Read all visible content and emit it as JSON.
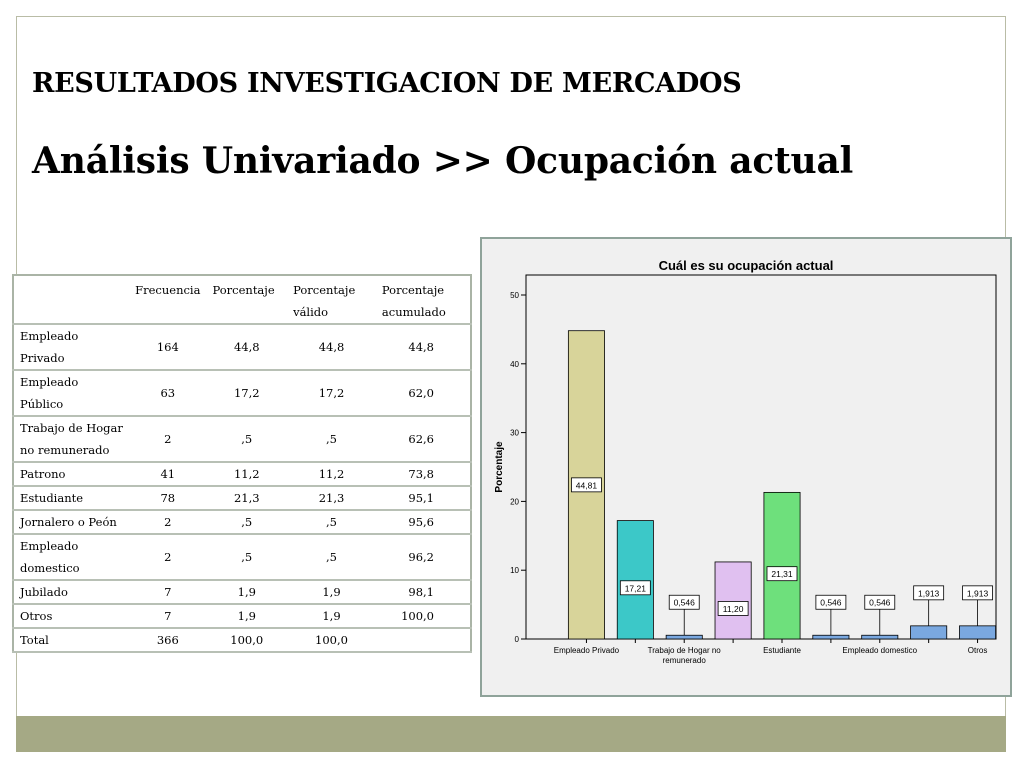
{
  "slide": {
    "heading": "RESULTADOS INVESTIGACION DE MERCADOS",
    "subheading": "Análisis Univariado >> Ocupación actual"
  },
  "table": {
    "headers": [
      "",
      "Frecuencia",
      "Porcentaje",
      "Porcentaje válido",
      "Porcentaje acumulado"
    ],
    "rows": [
      [
        "Empleado Privado",
        "164",
        "44,8",
        "44,8",
        "44,8"
      ],
      [
        "Empleado Público",
        "63",
        "17,2",
        "17,2",
        "62,0"
      ],
      [
        "Trabajo de Hogar no remunerado",
        "2",
        ",5",
        ",5",
        "62,6"
      ],
      [
        "Patrono",
        "41",
        "11,2",
        "11,2",
        "73,8"
      ],
      [
        "Estudiante",
        "78",
        "21,3",
        "21,3",
        "95,1"
      ],
      [
        "Jornalero o Peón",
        "2",
        ",5",
        ",5",
        "95,6"
      ],
      [
        "Empleado domestico",
        "2",
        ",5",
        ",5",
        "96,2"
      ],
      [
        "Jubilado",
        "7",
        "1,9",
        "1,9",
        "98,1"
      ],
      [
        "Otros",
        "7",
        "1,9",
        "1,9",
        "100,0"
      ],
      [
        "Total",
        "366",
        "100,0",
        "100,0",
        ""
      ]
    ]
  },
  "chart_data": {
    "type": "bar",
    "title": "Cuál es su ocupación actual",
    "ylabel": "Porcentaje",
    "xlabel": "",
    "ylim": [
      0,
      50
    ],
    "yticks": [
      0,
      10,
      20,
      30,
      40,
      50
    ],
    "categories": [
      "Empleado Privado",
      "Empleado Público",
      "Trabajo de Hogar no remunerado",
      "Patrono",
      "Estudiante",
      "Jornalero o Peón",
      "Empleado domestico",
      "Jubilado",
      "Otros"
    ],
    "shown_xtick_labels": [
      "Empleado Privado",
      "",
      "Trabajo de Hogar no remunerado",
      "",
      "Estudiante",
      "",
      "Empleado domestico",
      "",
      "Otros"
    ],
    "values": [
      44.81,
      17.21,
      0.546,
      11.2,
      21.31,
      0.546,
      0.546,
      1.913,
      1.913
    ],
    "data_labels": [
      "44,81",
      "17,21",
      "0,546",
      "11,20",
      "21,31",
      "0,546",
      "0,546",
      "1,913",
      "1,913"
    ],
    "colors": [
      "#d8d49a",
      "#3cc8c8",
      "#7aa8e0",
      "#e0c0f0",
      "#6ee07c",
      "#7aa8e0",
      "#7aa8e0",
      "#7aa8e0",
      "#7aa8e0"
    ],
    "grid": false,
    "legend": "none"
  }
}
